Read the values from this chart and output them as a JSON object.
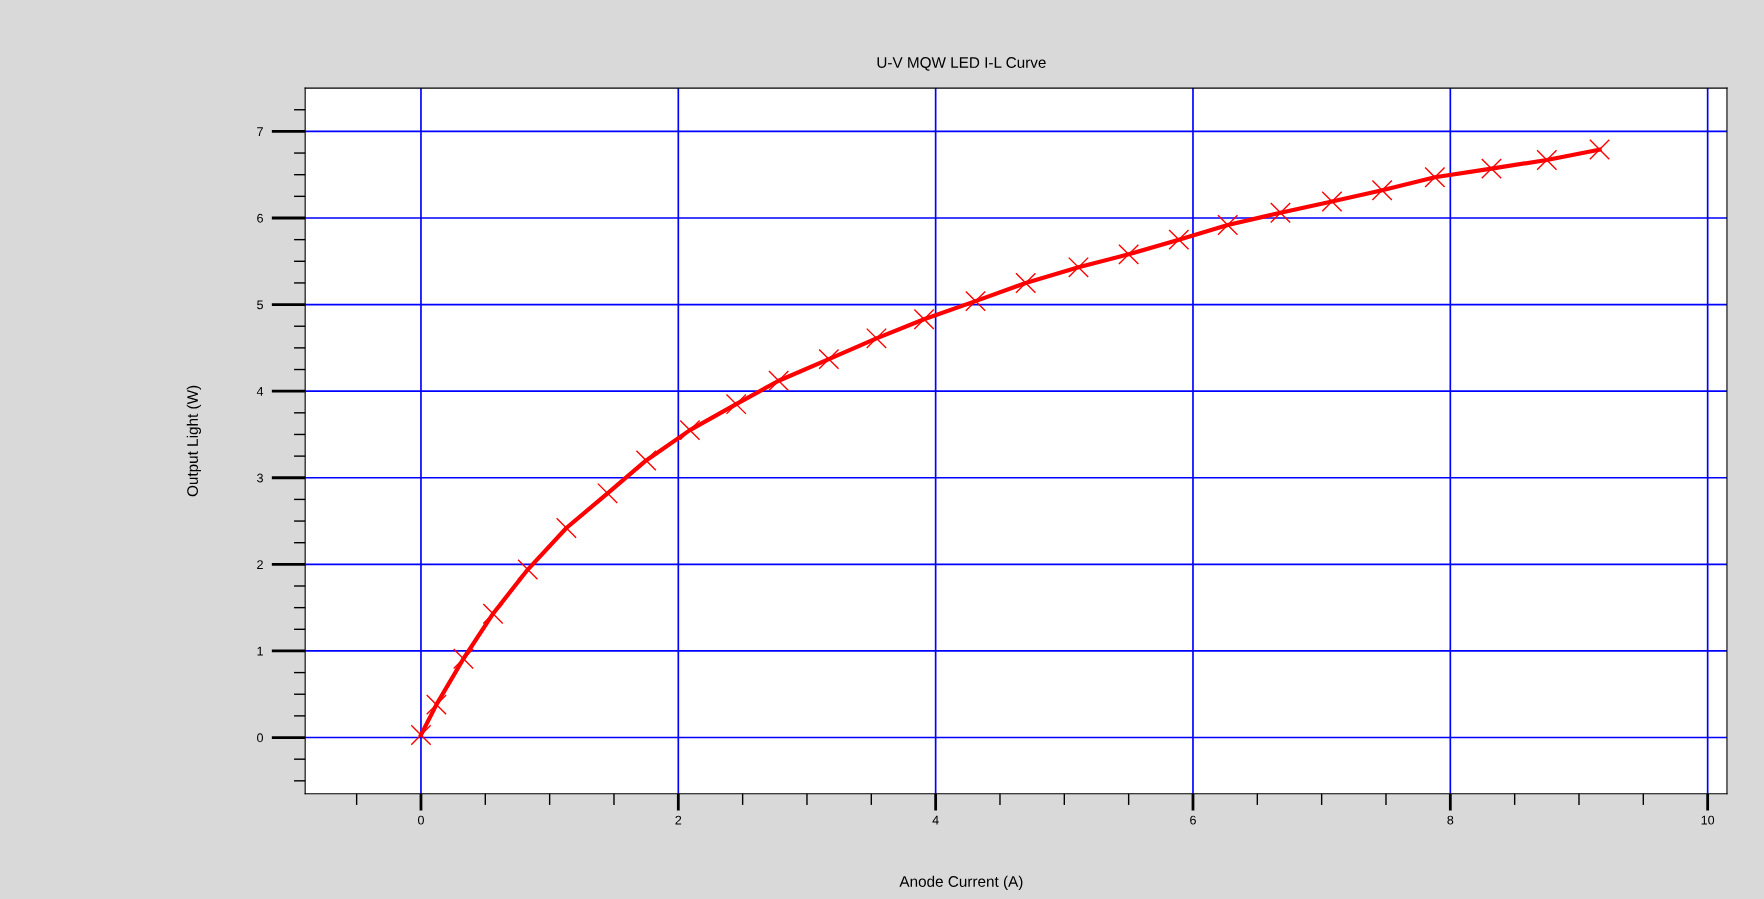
{
  "chart_data": {
    "type": "line",
    "title": "U-V MQW LED I-L Curve",
    "xlabel": "Anode Current (A)",
    "ylabel": "Output Light (W)",
    "x": [
      0,
      0.12,
      0.33,
      0.56,
      0.83,
      1.13,
      1.45,
      1.75,
      2.09,
      2.45,
      2.78,
      3.17,
      3.54,
      3.91,
      4.31,
      4.7,
      5.11,
      5.5,
      5.89,
      6.27,
      6.68,
      7.08,
      7.47,
      7.88,
      8.32,
      8.75,
      9.16
    ],
    "series": [
      {
        "color": "#ff0000",
        "values": [
          0.03,
          0.38,
          0.91,
          1.43,
          1.94,
          2.42,
          2.82,
          3.2,
          3.55,
          3.85,
          4.12,
          4.37,
          4.61,
          4.83,
          5.04,
          5.25,
          5.43,
          5.58,
          5.75,
          5.92,
          6.06,
          6.19,
          6.32,
          6.47,
          6.57,
          6.67,
          6.79
        ]
      }
    ],
    "marker": "cross",
    "line_style": "solid",
    "grid": true,
    "xlim": [
      -0.9,
      10.15
    ],
    "ylim": [
      -0.65,
      7.5
    ],
    "xticks": [
      {
        "value": -0.5,
        "label": null
      },
      0,
      {
        "value": 0.5,
        "label": null
      },
      {
        "value": 1,
        "label": null
      },
      {
        "value": 1.5,
        "label": null
      },
      2,
      {
        "value": 2.5,
        "label": null
      },
      {
        "value": 3,
        "label": null
      },
      {
        "value": 3.5,
        "label": null
      },
      4,
      {
        "value": 4.5,
        "label": null
      },
      {
        "value": 5,
        "label": null
      },
      {
        "value": 5.5,
        "label": null
      },
      6,
      {
        "value": 6.5,
        "label": null
      },
      {
        "value": 7,
        "label": null
      },
      {
        "value": 7.5,
        "label": null
      },
      8,
      {
        "value": 8.5,
        "label": null
      },
      {
        "value": 9,
        "label": null
      },
      {
        "value": 9.5,
        "label": null
      },
      10
    ],
    "yticks": [
      {
        "value": -0.5,
        "label": null
      },
      {
        "value": -0.25,
        "label": null
      },
      0,
      {
        "value": 0.25,
        "label": null
      },
      {
        "value": 0.5,
        "label": null
      },
      {
        "value": 0.75,
        "label": null
      },
      1,
      {
        "value": 1.25,
        "label": null
      },
      {
        "value": 1.5,
        "label": null
      },
      {
        "value": 1.75,
        "label": null
      },
      2,
      {
        "value": 2.25,
        "label": null
      },
      {
        "value": 2.5,
        "label": null
      },
      {
        "value": 2.75,
        "label": null
      },
      3,
      {
        "value": 3.25,
        "label": null
      },
      {
        "value": 3.5,
        "label": null
      },
      {
        "value": 3.75,
        "label": null
      },
      4,
      {
        "value": 4.25,
        "label": null
      },
      {
        "value": 4.5,
        "label": null
      },
      {
        "value": 4.75,
        "label": null
      },
      5,
      {
        "value": 5.25,
        "label": null
      },
      {
        "value": 5.5,
        "label": null
      },
      {
        "value": 5.75,
        "label": null
      },
      6,
      {
        "value": 6.25,
        "label": null
      },
      {
        "value": 6.5,
        "label": null
      },
      {
        "value": 6.75,
        "label": null
      },
      7,
      {
        "value": 7.25,
        "label": null
      }
    ]
  }
}
